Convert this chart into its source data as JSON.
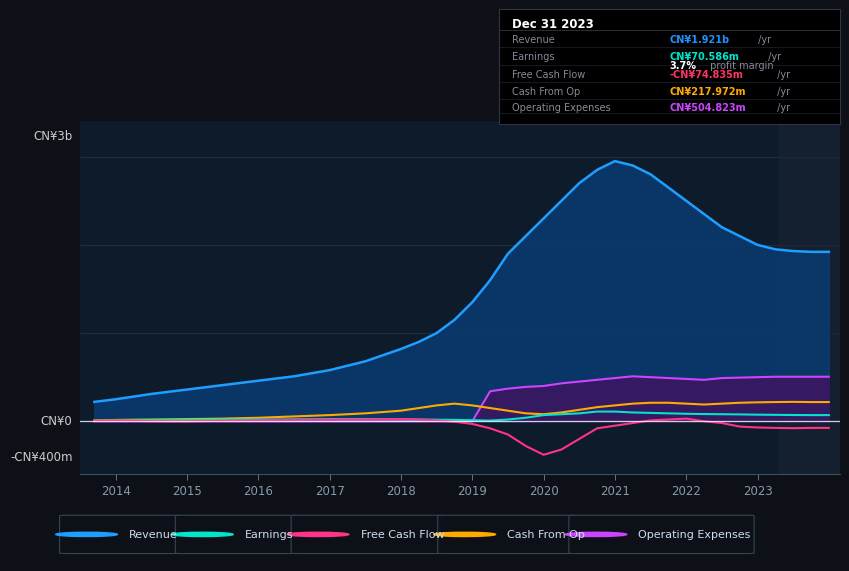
{
  "bg_color": "#0d1117",
  "plot_bg_color": "#0d1b2a",
  "title_box": {
    "date": "Dec 31 2023",
    "rows": [
      {
        "label": "Revenue",
        "value": "CN¥1.921b",
        "unit": " /yr",
        "color": "#1e90ff"
      },
      {
        "label": "Earnings",
        "value": "CN¥70.586m",
        "unit": " /yr",
        "color": "#00e5cc"
      },
      {
        "label": "",
        "value": "3.7%",
        "unit": " profit margin",
        "color": "#ffffff"
      },
      {
        "label": "Free Cash Flow",
        "value": "-CN¥74.835m",
        "unit": " /yr",
        "color": "#ff3366"
      },
      {
        "label": "Cash From Op",
        "value": "CN¥217.972m",
        "unit": " /yr",
        "color": "#ffaa00"
      },
      {
        "label": "Operating Expenses",
        "value": "CN¥504.823m",
        "unit": " /yr",
        "color": "#cc44ff"
      }
    ]
  },
  "ylabel_top": "CN¥3b",
  "ylabel_zero": "CN¥0",
  "ylabel_neg": "-CN¥400m",
  "years": [
    2013.7,
    2014.0,
    2014.25,
    2014.5,
    2015.0,
    2015.5,
    2016.0,
    2016.5,
    2017.0,
    2017.5,
    2018.0,
    2018.25,
    2018.5,
    2018.75,
    2019.0,
    2019.25,
    2019.5,
    2019.75,
    2020.0,
    2020.25,
    2020.5,
    2020.75,
    2021.0,
    2021.25,
    2021.5,
    2021.75,
    2022.0,
    2022.25,
    2022.5,
    2022.75,
    2023.0,
    2023.25,
    2023.5,
    2023.75,
    2024.0
  ],
  "revenue": [
    220,
    250,
    280,
    310,
    360,
    410,
    460,
    510,
    580,
    680,
    820,
    900,
    1000,
    1150,
    1350,
    1600,
    1900,
    2100,
    2300,
    2500,
    2700,
    2850,
    2950,
    2900,
    2800,
    2650,
    2500,
    2350,
    2200,
    2100,
    2000,
    1950,
    1930,
    1921,
    1921
  ],
  "earnings": [
    5,
    8,
    10,
    12,
    15,
    18,
    20,
    22,
    25,
    25,
    22,
    20,
    18,
    15,
    12,
    8,
    20,
    40,
    70,
    80,
    90,
    110,
    110,
    100,
    95,
    90,
    85,
    82,
    80,
    78,
    75,
    73,
    71,
    70,
    70
  ],
  "free_cash_flow": [
    5,
    8,
    5,
    0,
    -2,
    5,
    10,
    15,
    20,
    20,
    25,
    20,
    10,
    -5,
    -30,
    -80,
    -150,
    -280,
    -380,
    -320,
    -200,
    -80,
    -50,
    -20,
    10,
    20,
    30,
    0,
    -20,
    -60,
    -70,
    -75,
    -78,
    -75,
    -75
  ],
  "cash_from_op": [
    10,
    15,
    18,
    20,
    25,
    30,
    40,
    55,
    70,
    90,
    120,
    150,
    180,
    200,
    180,
    150,
    120,
    90,
    80,
    100,
    130,
    160,
    180,
    200,
    210,
    210,
    200,
    190,
    200,
    210,
    215,
    218,
    220,
    218,
    218
  ],
  "operating_expenses": [
    0,
    0,
    0,
    0,
    0,
    0,
    0,
    0,
    0,
    0,
    0,
    0,
    0,
    0,
    0,
    340,
    370,
    390,
    400,
    430,
    450,
    470,
    490,
    510,
    500,
    490,
    480,
    470,
    490,
    495,
    500,
    505,
    505,
    505,
    505
  ],
  "revenue_color": "#1e9eff",
  "revenue_fill": "#0a3a6e",
  "earnings_color": "#00e5cc",
  "fcf_color": "#ff3388",
  "cfo_color": "#ffaa00",
  "opex_color": "#cc44ff",
  "opex_fill": "#3d1560",
  "legend_items": [
    {
      "label": "Revenue",
      "color": "#1e9eff"
    },
    {
      "label": "Earnings",
      "color": "#00e5cc"
    },
    {
      "label": "Free Cash Flow",
      "color": "#ff3388"
    },
    {
      "label": "Cash From Op",
      "color": "#ffaa00"
    },
    {
      "label": "Operating Expenses",
      "color": "#cc44ff"
    }
  ],
  "xlim": [
    2013.5,
    2024.15
  ],
  "ylim": [
    -600,
    3400
  ],
  "ylim_display": [
    -400,
    3000
  ],
  "xticks": [
    2014,
    2015,
    2016,
    2017,
    2018,
    2019,
    2020,
    2021,
    2022,
    2023
  ],
  "shade_start_x": 2023.3
}
